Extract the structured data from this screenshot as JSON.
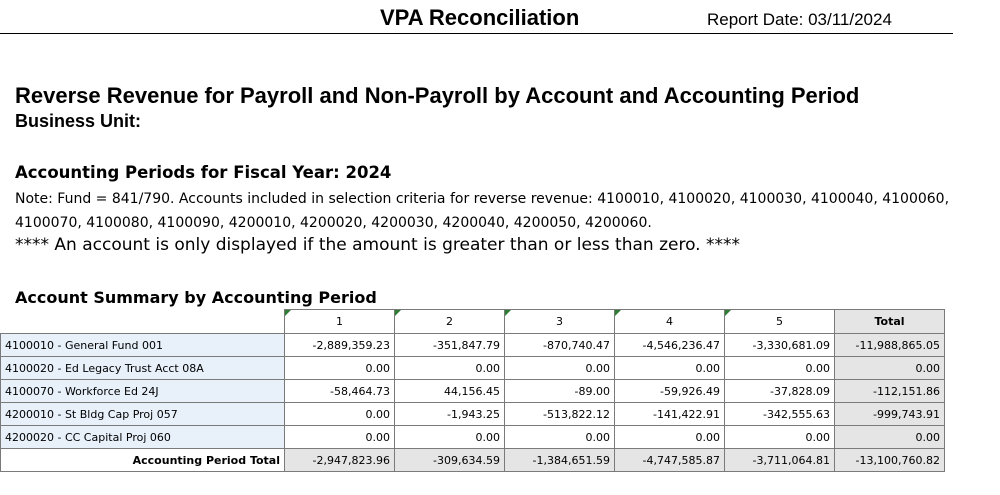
{
  "header": {
    "title": "VPA Reconciliation",
    "report_date": "Report Date: 03/11/2024"
  },
  "report": {
    "heading": "Reverse Revenue for Payroll and Non-Payroll by Account and Accounting Period",
    "business_unit_label": "Business Unit:",
    "periods_heading": "Accounting Periods for Fiscal Year: 2024",
    "note": "Note: Fund = 841/790. Accounts included in selection criteria for reverse revenue: 4100010, 4100020, 4100030, 4100040, 4100060, 4100070, 4100080, 4100090, 4200010, 4200020, 4200030, 4200040, 4200050, 4200060.",
    "disclaimer": "**** An account is only displayed if the amount is greater than or less than zero. ****",
    "summary_heading": "Account Summary by Accounting Period"
  },
  "table": {
    "columns": [
      "1",
      "2",
      "3",
      "4",
      "5",
      "Total"
    ],
    "rows": [
      {
        "account": "4100010 - General Fund 001",
        "values": [
          "-2,889,359.23",
          "-351,847.79",
          "-870,740.47",
          "-4,546,236.47",
          "-3,330,681.09"
        ],
        "total": "-11,988,865.05"
      },
      {
        "account": "4100020 - Ed Legacy Trust Acct 08A",
        "values": [
          "0.00",
          "0.00",
          "0.00",
          "0.00",
          "0.00"
        ],
        "total": "0.00"
      },
      {
        "account": "4100070 - Workforce Ed 24J",
        "values": [
          "-58,464.73",
          "44,156.45",
          "-89.00",
          "-59,926.49",
          "-37,828.09"
        ],
        "total": "-112,151.86"
      },
      {
        "account": "4200010 - St Bldg Cap Proj 057",
        "values": [
          "0.00",
          "-1,943.25",
          "-513,822.12",
          "-141,422.91",
          "-342,555.63"
        ],
        "total": "-999,743.91"
      },
      {
        "account": "4200020 - CC Capital Proj 060",
        "values": [
          "0.00",
          "0.00",
          "0.00",
          "0.00",
          "0.00"
        ],
        "total": "0.00"
      }
    ],
    "period_total": {
      "label": "Accounting Period Total",
      "values": [
        "-2,947,823.96",
        "-309,634.59",
        "-1,384,651.59",
        "-4,747,585.87",
        "-3,711,064.81"
      ],
      "total": "-13,100,760.82"
    }
  }
}
